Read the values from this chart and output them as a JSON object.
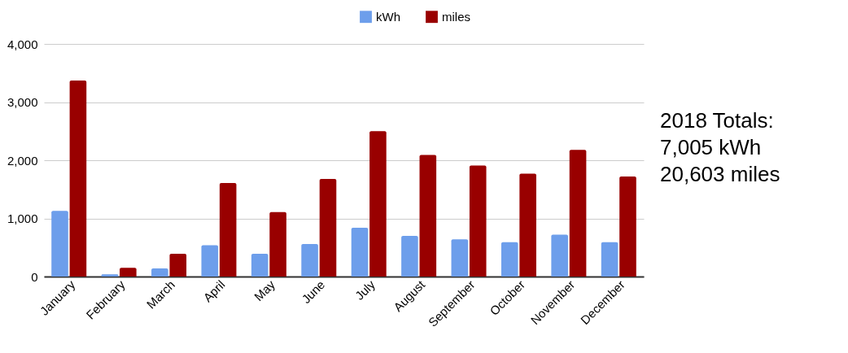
{
  "chart_data": {
    "type": "bar",
    "categories": [
      "January",
      "February",
      "March",
      "April",
      "May",
      "June",
      "July",
      "August",
      "September",
      "October",
      "November",
      "December"
    ],
    "series": [
      {
        "name": "kWh",
        "color": "#6d9eeb",
        "values": [
          1130,
          40,
          140,
          540,
          390,
          560,
          840,
          700,
          640,
          590,
          720,
          590
        ]
      },
      {
        "name": "miles",
        "color": "#990000",
        "values": [
          3370,
          150,
          390,
          1610,
          1110,
          1680,
          2500,
          2090,
          1910,
          1770,
          2180,
          1720
        ]
      }
    ],
    "ylim": [
      0,
      4000
    ],
    "yticks": [
      0,
      {
        "value": 1000,
        "label": "1,000"
      },
      {
        "value": 2000,
        "label": "2,000"
      },
      {
        "value": 3000,
        "label": "3,000"
      },
      {
        "value": 4000,
        "label": "4,000"
      }
    ],
    "grid": "y",
    "legend": "top",
    "annotations": [
      "2018 Totals:",
      "7,005 kWh",
      "20,603 miles"
    ]
  }
}
